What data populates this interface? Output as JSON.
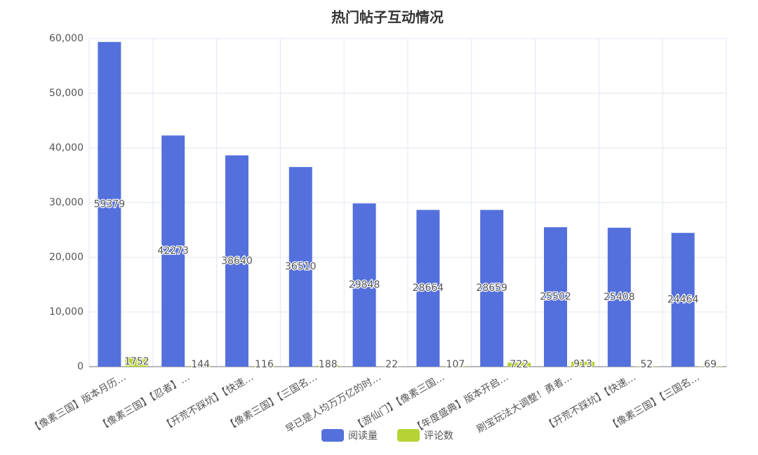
{
  "chart_data": {
    "type": "bar",
    "title": "热门帖子互动情况",
    "categories": [
      "【像素三国】版本月历…",
      "【像素三国】【忍者】…",
      "【开荒不踩坑】【快速…",
      "【像素三国】【三国名…",
      "早已是人均万万亿的时…",
      "【游仙门】【像素三国…",
      "【年度盛典】版本开启…",
      "刷宝玩法大调整！勇者…",
      "【开荒不踩坑】【快速…",
      "【像素三国】【三国名…"
    ],
    "series": [
      {
        "name": "阅读量",
        "color": "#5470dc",
        "values": [
          59379,
          42273,
          38640,
          36510,
          29848,
          28664,
          28659,
          25502,
          25408,
          24464
        ]
      },
      {
        "name": "评论数",
        "color": "#b5d334",
        "values": [
          1752,
          144,
          116,
          188,
          22,
          107,
          722,
          913,
          52,
          69
        ]
      }
    ],
    "ylim": [
      0,
      60000
    ],
    "yticks": [
      0,
      {
        "value": 10000,
        "label": "10,000"
      },
      {
        "value": 20000,
        "label": "20,000"
      },
      {
        "value": 30000,
        "label": "30,000"
      },
      {
        "value": 40000,
        "label": "40,000"
      },
      {
        "value": 50000,
        "label": "50,000"
      },
      {
        "value": 60000,
        "label": "60,000"
      }
    ],
    "grid": true,
    "legend": "bottom"
  }
}
